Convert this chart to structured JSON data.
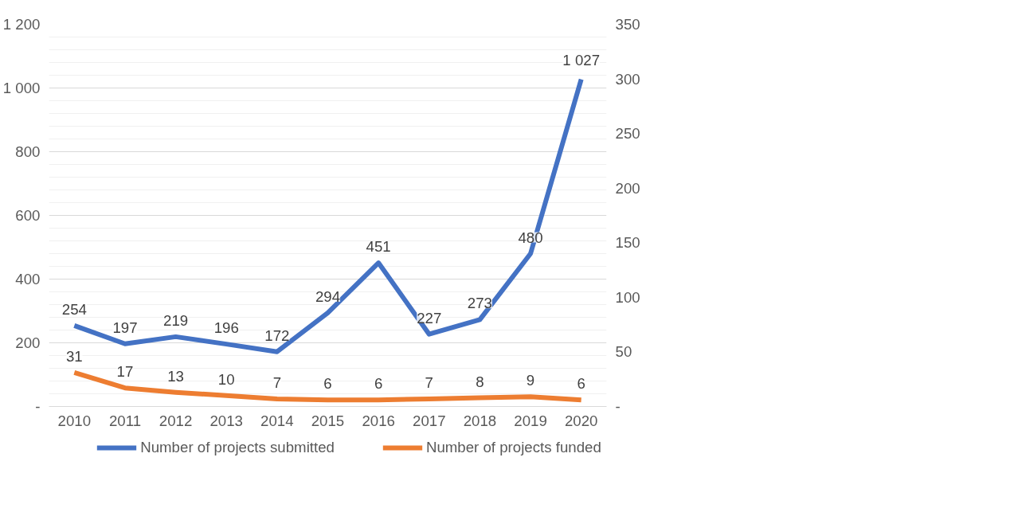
{
  "chart_data": {
    "type": "line",
    "categories": [
      "2010",
      "2011",
      "2012",
      "2013",
      "2014",
      "2015",
      "2016",
      "2017",
      "2018",
      "2019",
      "2020"
    ],
    "series": [
      {
        "name": "Number of projects submitted",
        "color": "#4472c4",
        "values": [
          254,
          197,
          219,
          196,
          172,
          294,
          451,
          227,
          273,
          480,
          1027
        ],
        "value_labels": [
          "254",
          "197",
          "219",
          "196",
          "172",
          "294",
          "451",
          "227",
          "273",
          "480",
          "1 027"
        ]
      },
      {
        "name": "Number of projects funded",
        "color": "#ed7d31",
        "axis": "y2",
        "values": [
          31,
          17,
          13,
          10,
          7,
          6,
          6,
          7,
          8,
          9,
          6
        ],
        "value_labels": [
          "31",
          "17",
          "13",
          "10",
          "7",
          "6",
          "6",
          "7",
          "8",
          "9",
          "6"
        ]
      }
    ],
    "ylim": [
      0,
      1200
    ],
    "yticks": [
      {
        "value": 0,
        "label": "-"
      },
      {
        "value": 200,
        "label": "200"
      },
      {
        "value": 400,
        "label": "400"
      },
      {
        "value": 600,
        "label": "600"
      },
      {
        "value": 800,
        "label": "800"
      },
      {
        "value": 1000,
        "label": "1 000"
      },
      {
        "value": 1200,
        "label": "1 200"
      }
    ],
    "y2lim": [
      0,
      350
    ],
    "y2ticks": [
      {
        "value": 0,
        "label": "-"
      },
      50,
      100,
      150,
      200,
      250,
      300,
      350
    ],
    "grid": "y",
    "legend": "bottom",
    "line_style": "solid",
    "marker": "none"
  }
}
